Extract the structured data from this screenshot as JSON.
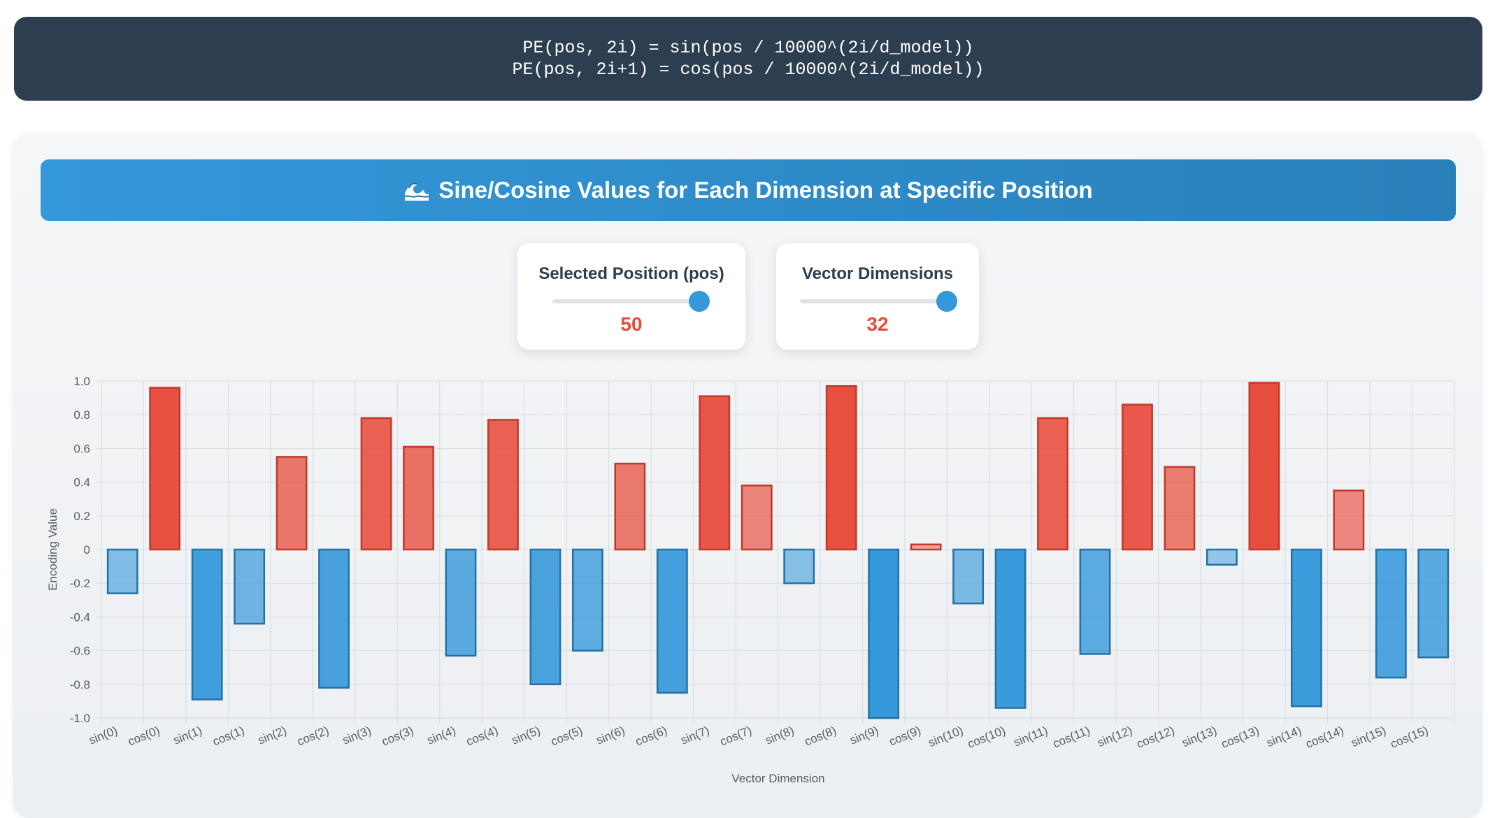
{
  "formula": {
    "line1": "PE(pos, 2i) = sin(pos / 10000^(2i/d_model))",
    "line2": "PE(pos, 2i+1) = cos(pos / 10000^(2i/d_model))"
  },
  "panel": {
    "title": "Sine/Cosine Values for Each Dimension at Specific Position",
    "title_icon": "wave-icon"
  },
  "controls": {
    "position": {
      "label": "Selected Position (pos)",
      "value": "50",
      "fraction": 1.0
    },
    "dimensions": {
      "label": "Vector Dimensions",
      "value": "32",
      "fraction": 1.0
    }
  },
  "colors": {
    "positive": "#e74c3c",
    "negative": "#3498db",
    "formula_bg": "#2c3e50",
    "value_text": "#e74c3c"
  },
  "chart_data": {
    "type": "bar",
    "xlabel": "Vector Dimension",
    "ylabel": "Encoding Value",
    "ylim": [
      -1.0,
      1.0
    ],
    "yticks": [
      "1.0",
      "0.8",
      "0.6",
      "0.4",
      "0.2",
      "0",
      "-0.2",
      "-0.4",
      "-0.6",
      "-0.8",
      "-1.0"
    ],
    "grid": true,
    "categories": [
      "sin(0)",
      "cos(0)",
      "sin(1)",
      "cos(1)",
      "sin(2)",
      "cos(2)",
      "sin(3)",
      "cos(3)",
      "sin(4)",
      "cos(4)",
      "sin(5)",
      "cos(5)",
      "sin(6)",
      "cos(6)",
      "sin(7)",
      "cos(7)",
      "sin(8)",
      "cos(8)",
      "sin(9)",
      "cos(9)",
      "sin(10)",
      "cos(10)",
      "sin(11)",
      "cos(11)",
      "sin(12)",
      "cos(12)",
      "sin(13)",
      "cos(13)",
      "sin(14)",
      "cos(14)",
      "sin(15)",
      "cos(15)"
    ],
    "values": [
      -0.26,
      0.96,
      -0.89,
      -0.44,
      0.55,
      -0.82,
      0.78,
      0.61,
      -0.63,
      0.77,
      -0.8,
      -0.6,
      0.51,
      -0.85,
      0.91,
      0.38,
      -0.2,
      0.97,
      -1.0,
      0.03,
      -0.32,
      -0.94,
      0.78,
      -0.62,
      0.86,
      0.49,
      -0.09,
      0.99,
      -0.93,
      0.35,
      -0.76,
      -0.64
    ]
  }
}
